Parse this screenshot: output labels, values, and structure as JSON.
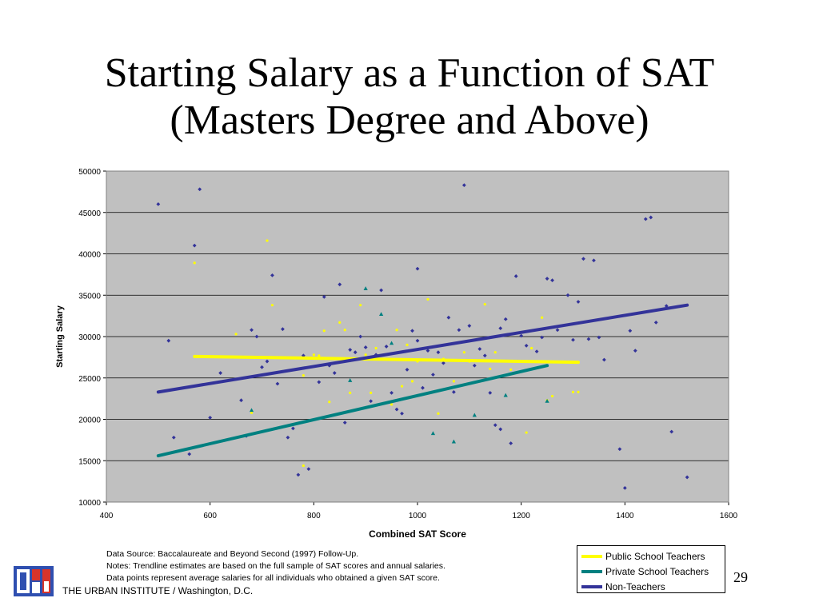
{
  "slide": {
    "title_line1": "Starting Salary as a Function of SAT",
    "title_line2": "(Masters Degree and Above)",
    "page_number": "29",
    "footer": "THE URBAN INSTITUTE / Washington, D.C.",
    "notes": [
      "Data Source: Baccalaureate and Beyond Second (1997) Follow-Up.",
      "Notes:  Trendline estimates are based on the full sample of SAT scores and annual salaries.",
      "Data points represent average salaries for all individuals who obtained a given SAT score."
    ],
    "logo_icon": "urban-institute-logo-icon"
  },
  "chart_data": {
    "type": "scatter",
    "xlabel": "Combined SAT Score",
    "ylabel": "Starting Salary",
    "xlim": [
      400,
      1600
    ],
    "ylim": [
      10000,
      50000
    ],
    "xticks": [
      400,
      600,
      800,
      1000,
      1200,
      1400,
      1600
    ],
    "yticks": [
      10000,
      15000,
      20000,
      25000,
      30000,
      35000,
      40000,
      45000,
      50000
    ],
    "grid": "horizontal",
    "plot_background": "#c0c0c0",
    "legend_position": "bottom-right, outside plot",
    "series": [
      {
        "name": "Public School Teachers",
        "color": "#ffff00",
        "marker": "circle",
        "points": [
          [
            570,
            38900
          ],
          [
            650,
            30300
          ],
          [
            680,
            20800
          ],
          [
            710,
            41600
          ],
          [
            720,
            33800
          ],
          [
            780,
            25300
          ],
          [
            780,
            14400
          ],
          [
            800,
            27800
          ],
          [
            810,
            27700
          ],
          [
            820,
            30700
          ],
          [
            830,
            22100
          ],
          [
            850,
            31700
          ],
          [
            860,
            30800
          ],
          [
            870,
            23200
          ],
          [
            890,
            33800
          ],
          [
            900,
            27800
          ],
          [
            910,
            23200
          ],
          [
            920,
            28600
          ],
          [
            950,
            21800
          ],
          [
            960,
            30800
          ],
          [
            970,
            24000
          ],
          [
            980,
            29000
          ],
          [
            990,
            24600
          ],
          [
            1000,
            27000
          ],
          [
            1020,
            34500
          ],
          [
            1040,
            20700
          ],
          [
            1050,
            27300
          ],
          [
            1070,
            24600
          ],
          [
            1090,
            28100
          ],
          [
            1100,
            27000
          ],
          [
            1120,
            27100
          ],
          [
            1130,
            33900
          ],
          [
            1140,
            26100
          ],
          [
            1150,
            28100
          ],
          [
            1180,
            26000
          ],
          [
            1210,
            18400
          ],
          [
            1220,
            28600
          ],
          [
            1240,
            32300
          ],
          [
            1250,
            22300
          ],
          [
            1260,
            22800
          ],
          [
            1300,
            23300
          ],
          [
            1310,
            23300
          ]
        ],
        "trendline": [
          [
            570,
            27600
          ],
          [
            1310,
            26900
          ]
        ]
      },
      {
        "name": "Private School Teachers",
        "color": "#008080",
        "marker": "triangle",
        "points": [
          [
            680,
            21100
          ],
          [
            870,
            24700
          ],
          [
            900,
            35800
          ],
          [
            930,
            32700
          ],
          [
            950,
            29200
          ],
          [
            1030,
            18300
          ],
          [
            1070,
            17300
          ],
          [
            1110,
            20500
          ],
          [
            1170,
            22900
          ],
          [
            1250,
            22200
          ]
        ],
        "trendline": [
          [
            500,
            15600
          ],
          [
            1250,
            26500
          ]
        ]
      },
      {
        "name": "Non-Teachers",
        "color": "#333399",
        "marker": "diamond",
        "points": [
          [
            500,
            46000
          ],
          [
            520,
            29500
          ],
          [
            530,
            17800
          ],
          [
            560,
            15800
          ],
          [
            570,
            41000
          ],
          [
            580,
            47800
          ],
          [
            600,
            20200
          ],
          [
            620,
            25600
          ],
          [
            660,
            22300
          ],
          [
            670,
            18000
          ],
          [
            680,
            30800
          ],
          [
            690,
            30000
          ],
          [
            700,
            26300
          ],
          [
            710,
            27000
          ],
          [
            720,
            37400
          ],
          [
            730,
            24300
          ],
          [
            740,
            30900
          ],
          [
            750,
            17800
          ],
          [
            760,
            18900
          ],
          [
            770,
            13300
          ],
          [
            780,
            27700
          ],
          [
            790,
            14000
          ],
          [
            810,
            24500
          ],
          [
            820,
            34800
          ],
          [
            830,
            26500
          ],
          [
            840,
            25600
          ],
          [
            850,
            36300
          ],
          [
            860,
            19600
          ],
          [
            870,
            28400
          ],
          [
            880,
            28100
          ],
          [
            890,
            30000
          ],
          [
            900,
            28700
          ],
          [
            910,
            22200
          ],
          [
            920,
            27800
          ],
          [
            930,
            35600
          ],
          [
            940,
            28800
          ],
          [
            950,
            23200
          ],
          [
            960,
            21200
          ],
          [
            970,
            20700
          ],
          [
            980,
            26000
          ],
          [
            990,
            30700
          ],
          [
            1000,
            38200
          ],
          [
            1000,
            29500
          ],
          [
            1010,
            23800
          ],
          [
            1020,
            28300
          ],
          [
            1030,
            25400
          ],
          [
            1040,
            28100
          ],
          [
            1050,
            26800
          ],
          [
            1060,
            32300
          ],
          [
            1070,
            23300
          ],
          [
            1080,
            30800
          ],
          [
            1090,
            48300
          ],
          [
            1100,
            31300
          ],
          [
            1110,
            26500
          ],
          [
            1120,
            28500
          ],
          [
            1130,
            27700
          ],
          [
            1140,
            23200
          ],
          [
            1150,
            19300
          ],
          [
            1160,
            18800
          ],
          [
            1160,
            31000
          ],
          [
            1170,
            32100
          ],
          [
            1180,
            17100
          ],
          [
            1190,
            37300
          ],
          [
            1200,
            30100
          ],
          [
            1210,
            28900
          ],
          [
            1230,
            28200
          ],
          [
            1240,
            29900
          ],
          [
            1250,
            37000
          ],
          [
            1260,
            36800
          ],
          [
            1270,
            30800
          ],
          [
            1290,
            35000
          ],
          [
            1300,
            29600
          ],
          [
            1310,
            34200
          ],
          [
            1320,
            39400
          ],
          [
            1330,
            29700
          ],
          [
            1340,
            39200
          ],
          [
            1350,
            29900
          ],
          [
            1360,
            27200
          ],
          [
            1390,
            16400
          ],
          [
            1400,
            11700
          ],
          [
            1410,
            30700
          ],
          [
            1420,
            28300
          ],
          [
            1440,
            44200
          ],
          [
            1450,
            44400
          ],
          [
            1460,
            31700
          ],
          [
            1480,
            33700
          ],
          [
            1490,
            18500
          ],
          [
            1520,
            13000
          ]
        ],
        "trendline": [
          [
            500,
            23300
          ],
          [
            1520,
            33800
          ]
        ]
      }
    ]
  }
}
